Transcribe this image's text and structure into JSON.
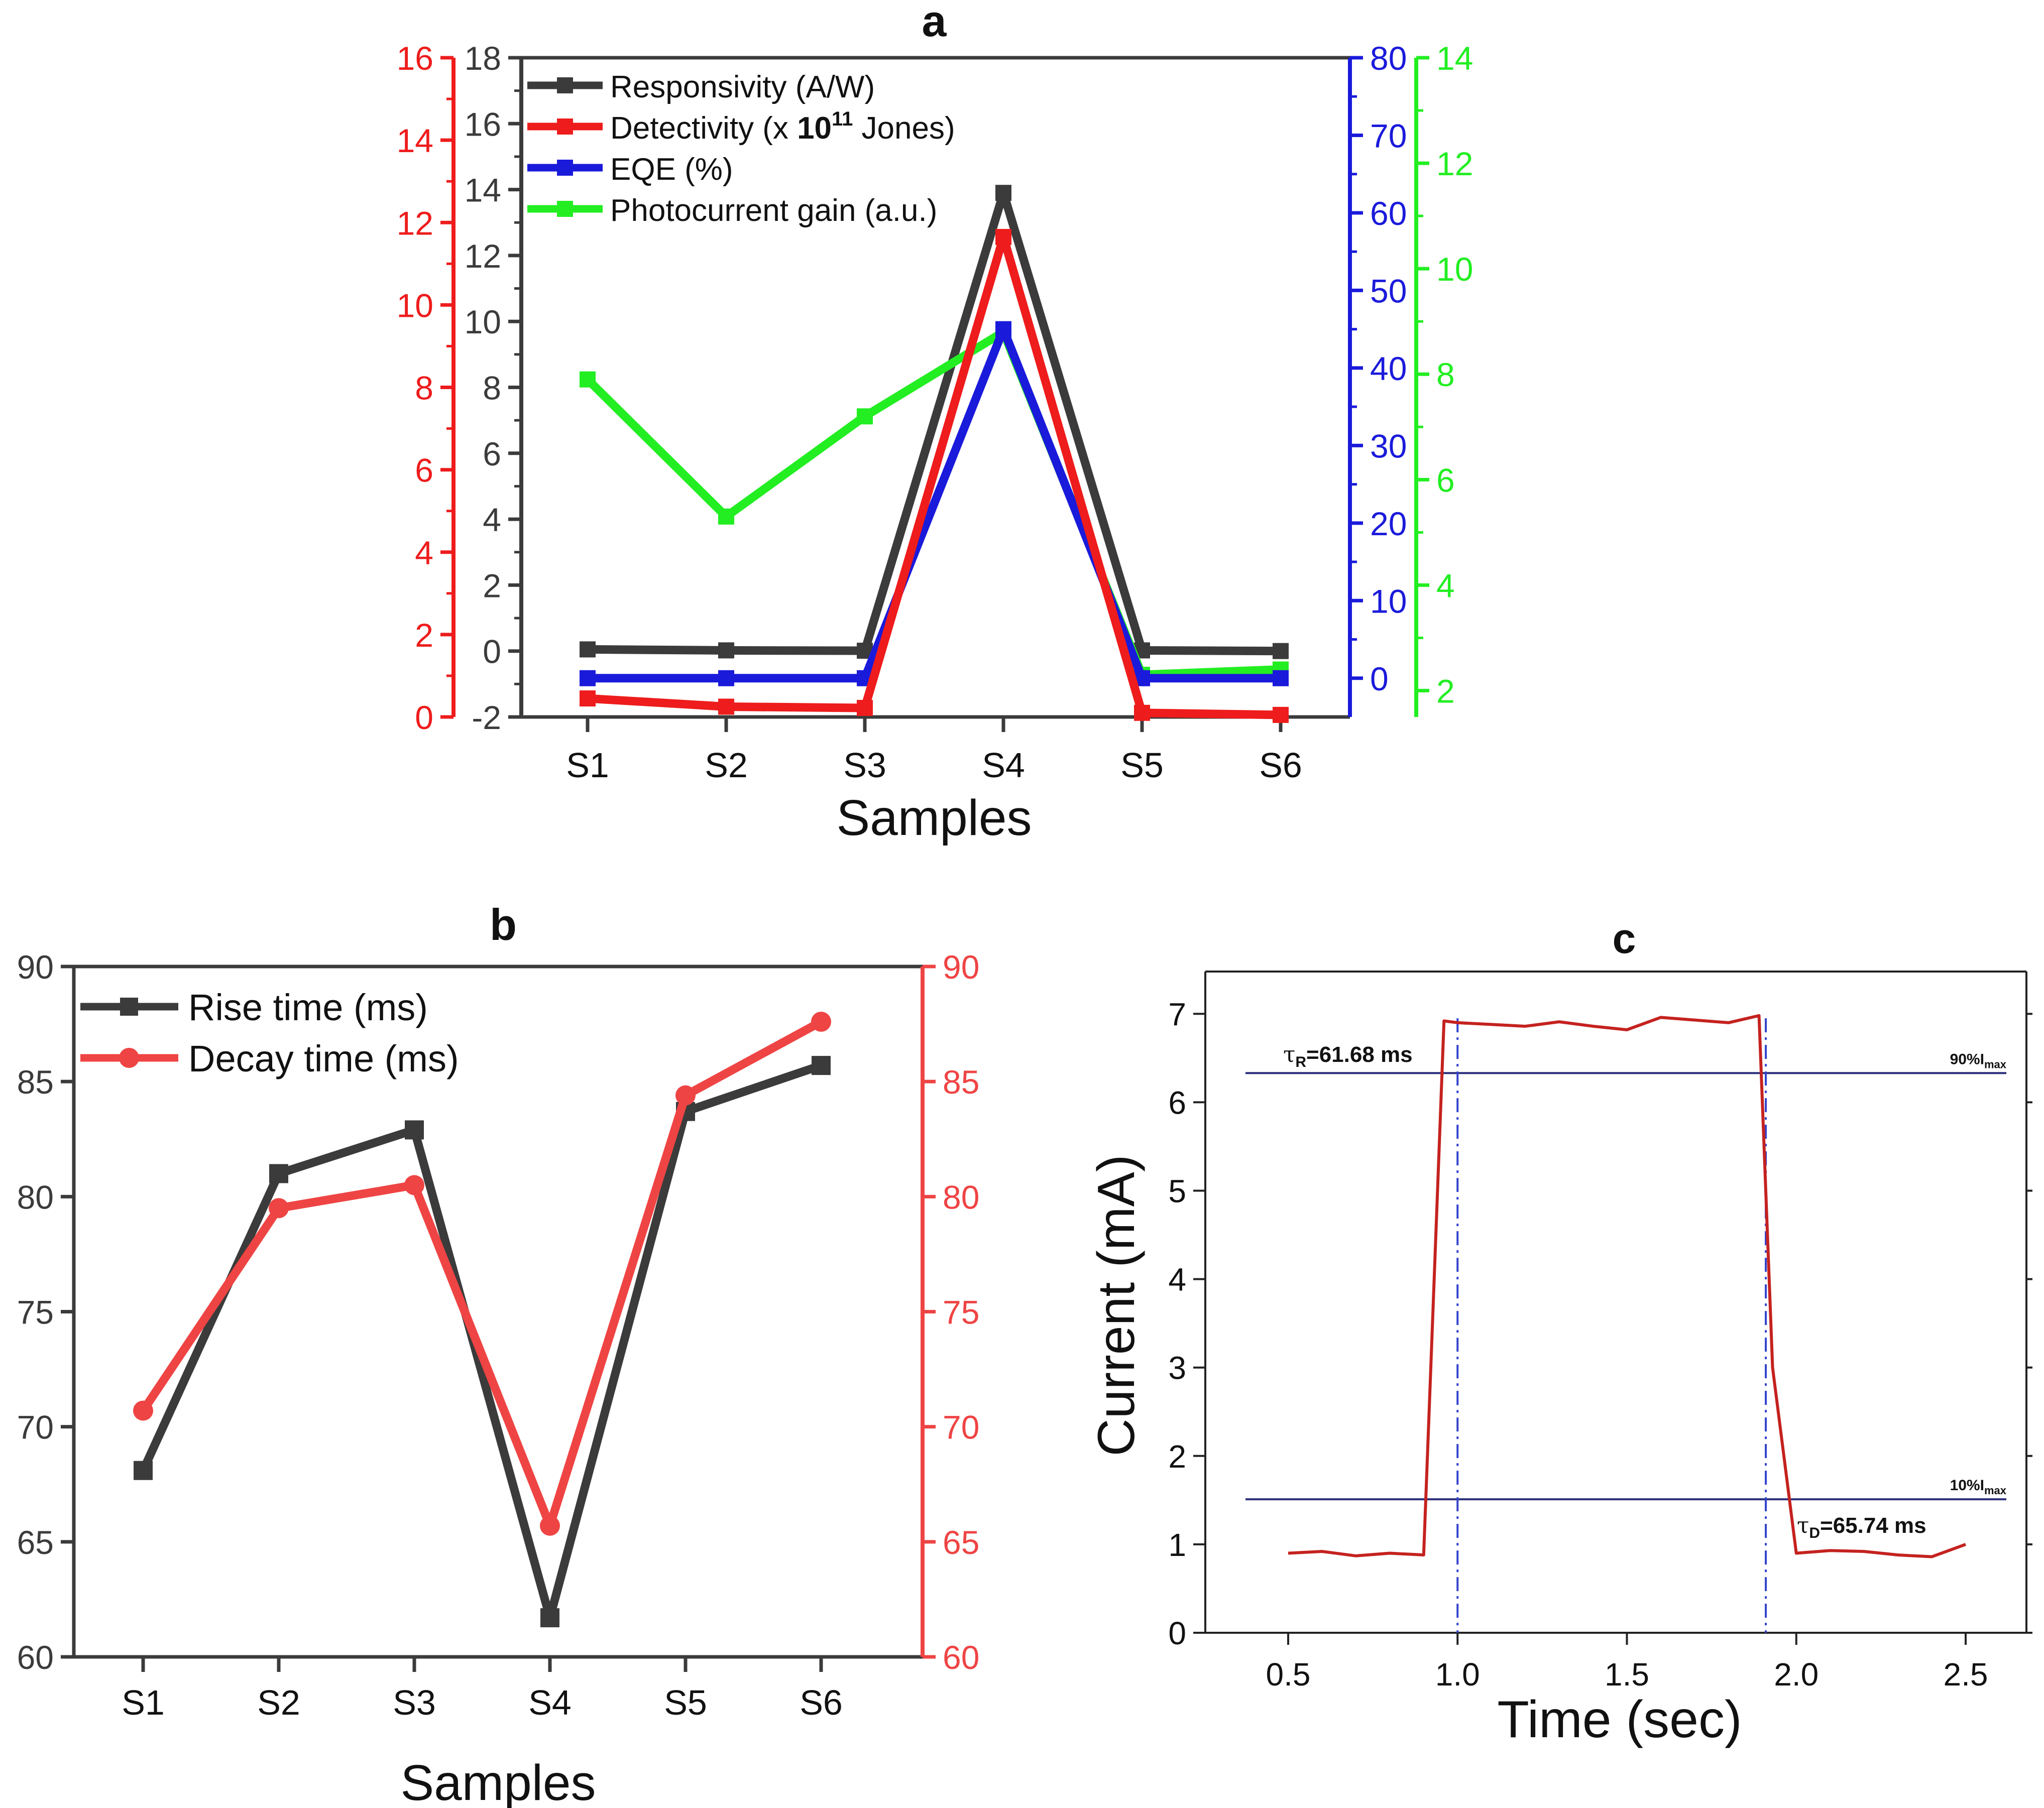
{
  "colors": {
    "black": "#3b3b3b",
    "red": "#ee1c1c",
    "blue": "#1a1adb",
    "green": "#22ee22",
    "decay_red": "#ef4444",
    "c_red": "#c4221f",
    "c_navy": "#2b2f7a",
    "c_dash": "#3344cc"
  },
  "chart_data": [
    {
      "panel": "a",
      "title": "a",
      "type": "line",
      "xlabel": "Samples",
      "categories": [
        "S1",
        "S2",
        "S3",
        "S4",
        "S5",
        "S6"
      ],
      "axes": [
        {
          "id": "left_red",
          "color": "red",
          "range": [
            0,
            16
          ],
          "ticks": [
            "0",
            "2",
            "4",
            "6",
            "8",
            "10",
            "12",
            "14",
            "16"
          ]
        },
        {
          "id": "left_black",
          "color": "black",
          "range": [
            -2,
            18
          ],
          "ticks": [
            "-2",
            "0",
            "2",
            "4",
            "6",
            "8",
            "10",
            "12",
            "14",
            "16",
            "18"
          ]
        },
        {
          "id": "right_blue",
          "color": "blue",
          "range": [
            -5,
            80
          ],
          "ticks": [
            "0",
            "10",
            "20",
            "30",
            "40",
            "50",
            "60",
            "70",
            "80"
          ]
        },
        {
          "id": "right_green",
          "color": "green",
          "range": [
            1.5,
            14
          ],
          "ticks": [
            "2",
            "4",
            "6",
            "8",
            "10",
            "12",
            "14"
          ]
        }
      ],
      "series": [
        {
          "name": "Responsivity (A/W)",
          "axis": "left_black",
          "color": "black",
          "values": [
            0.05,
            0.02,
            0.01,
            13.9,
            0.02,
            0.0
          ]
        },
        {
          "name": "Detectivity (x ",
          "name_bold": "10",
          "name_sup": "11",
          "name_end": " Jones)",
          "axis": "left_red",
          "color": "red",
          "values": [
            0.45,
            0.25,
            0.22,
            11.65,
            0.1,
            0.05
          ]
        },
        {
          "name": "EQE (%)",
          "axis": "right_blue",
          "color": "blue",
          "values": [
            0.0,
            0.0,
            0.0,
            45.0,
            0.0,
            0.0
          ]
        },
        {
          "name": "Photocurrent gain (a.u.)",
          "axis": "right_green",
          "color": "green",
          "values": [
            7.9,
            5.3,
            7.2,
            8.8,
            2.3,
            2.4
          ]
        }
      ]
    },
    {
      "panel": "b",
      "title": "b",
      "type": "line",
      "xlabel": "Samples",
      "categories": [
        "S1",
        "S2",
        "S3",
        "S4",
        "S5",
        "S6"
      ],
      "axes": [
        {
          "id": "left",
          "color": "black",
          "range": [
            60,
            90
          ],
          "ticks": [
            "60",
            "65",
            "70",
            "75",
            "80",
            "85",
            "90"
          ]
        },
        {
          "id": "right",
          "color": "decay_red",
          "range": [
            60,
            90
          ],
          "ticks": [
            "60",
            "65",
            "70",
            "75",
            "80",
            "85",
            "90"
          ]
        }
      ],
      "series": [
        {
          "name": "Rise time (ms)",
          "axis": "left",
          "color": "black",
          "marker": "square",
          "values": [
            68.1,
            81.0,
            82.9,
            61.7,
            83.7,
            85.7
          ]
        },
        {
          "name": "Decay time (ms)",
          "axis": "right",
          "color": "decay_red",
          "marker": "circle",
          "values": [
            70.7,
            79.5,
            80.5,
            65.7,
            84.4,
            87.6
          ]
        }
      ]
    },
    {
      "panel": "c",
      "title": "c",
      "type": "line",
      "xlabel": "Time (sec)",
      "ylabel": "Current (mA)",
      "xlim": [
        0.25,
        2.6
      ],
      "ylim": [
        0,
        7.5
      ],
      "xticks": [
        "0.5",
        "1.0",
        "1.5",
        "2.0",
        "2.5"
      ],
      "yticks": [
        "0",
        "1",
        "2",
        "3",
        "4",
        "5",
        "6",
        "7"
      ],
      "series": [
        {
          "name": "Current",
          "color": "c_red",
          "x": [
            0.5,
            0.6,
            0.7,
            0.8,
            0.9,
            0.96,
            1.0,
            1.1,
            1.2,
            1.3,
            1.4,
            1.5,
            1.6,
            1.7,
            1.8,
            1.89,
            1.93,
            2.0,
            2.1,
            2.2,
            2.3,
            2.4,
            2.5
          ],
          "y": [
            0.9,
            0.92,
            0.87,
            0.9,
            0.88,
            6.92,
            6.9,
            6.88,
            6.86,
            6.91,
            6.86,
            6.82,
            6.96,
            6.93,
            6.9,
            6.98,
            3.0,
            0.9,
            0.93,
            0.92,
            0.88,
            0.86,
            1.0
          ]
        }
      ],
      "hlines": [
        {
          "y": 6.33,
          "label_pre": "90%I",
          "label_sub": "max"
        },
        {
          "y": 1.51,
          "label_pre": "10%I",
          "label_sub": "max"
        }
      ],
      "vlines": [
        1.0,
        1.91
      ],
      "annotations": [
        {
          "id": "tau_r",
          "sym": "τ",
          "sub": "R",
          "text": "=61.68 ms"
        },
        {
          "id": "tau_d",
          "sym": "τ",
          "sub": "D",
          "text": "=65.74 ms"
        }
      ]
    }
  ]
}
